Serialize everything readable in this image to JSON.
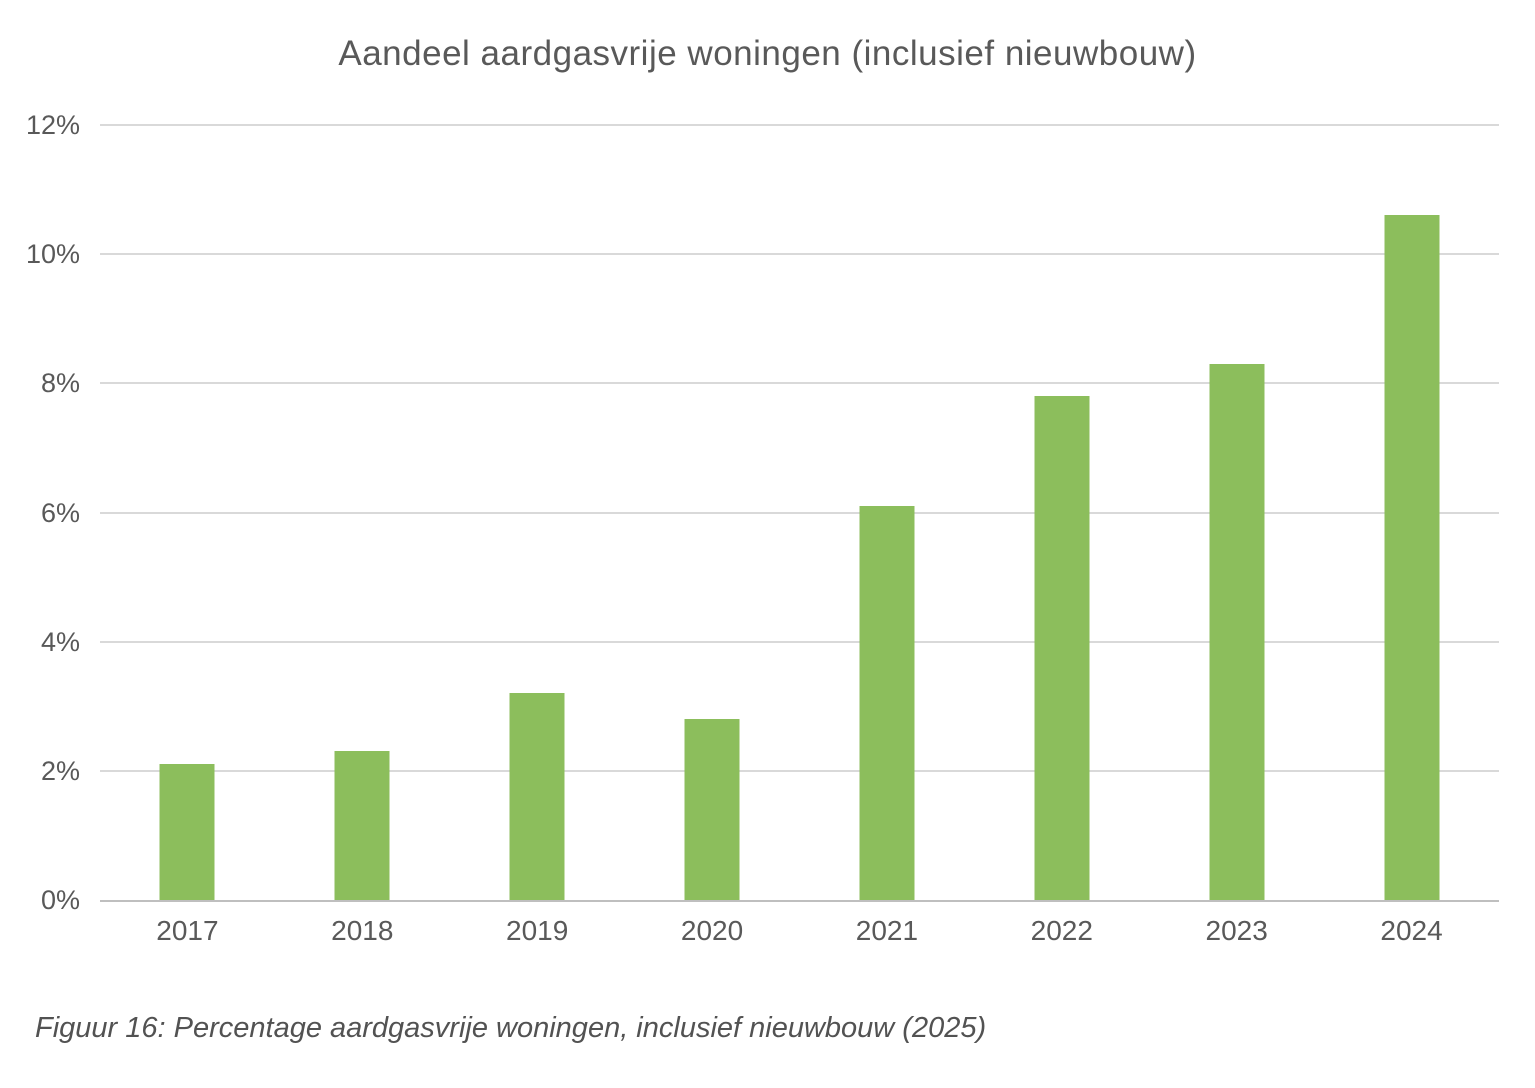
{
  "chart_data": {
    "type": "bar",
    "title": "Aandeel aardgasvrije woningen (inclusief nieuwbouw)",
    "categories": [
      "2017",
      "2018",
      "2019",
      "2020",
      "2021",
      "2022",
      "2023",
      "2024"
    ],
    "values": [
      2.1,
      2.3,
      3.2,
      2.8,
      6.1,
      7.8,
      8.3,
      10.6
    ],
    "unit": "%",
    "xlabel": "",
    "ylabel": "",
    "ylim": [
      0,
      12
    ],
    "ytick_labels": [
      "0%",
      "2%",
      "4%",
      "6%",
      "8%",
      "10%",
      "12%"
    ],
    "grid": "horizontal",
    "legend": "none"
  },
  "caption": "Figuur 16: Percentage aardgasvrije woningen, inclusief nieuwbouw (2025)",
  "colors": {
    "bar": "#8cbe5c",
    "gridline": "#d9d9d9",
    "axis_line": "#bfbfbf",
    "text": "#595959",
    "caption_text": "#525252",
    "background": "#ffffff"
  }
}
